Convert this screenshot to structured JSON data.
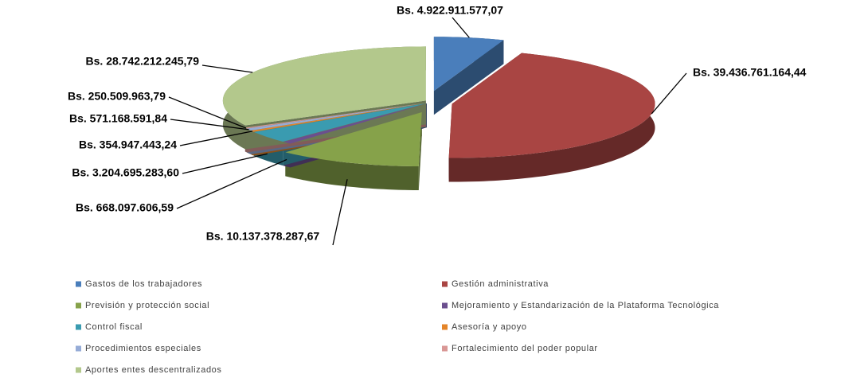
{
  "chart_data": {
    "type": "pie",
    "categories": [
      "Gastos de los trabajadores",
      "Gestión administrativa",
      "Previsión y protección social",
      "Mejoramiento y Estandarización de la Plataforma Tecnológica",
      "Control fiscal",
      "Asesoría y apoyo",
      "Procedimientos especiales",
      "Fortalecimiento del poder popular",
      "Aportes entes descentralizados"
    ],
    "values": [
      4922911577.07,
      39436761164.44,
      10137378287.67,
      668097606.59,
      3204695283.6,
      354947443.24,
      571168591.84,
      250509963.79,
      28742212245.79
    ],
    "value_labels": [
      "Bs. 4.922.911.577,07",
      "Bs. 39.436.761.164,44",
      "Bs. 10.137.378.287,67",
      "Bs. 668.097.606,59",
      "Bs. 3.204.695.283,60",
      "Bs. 354.947.443,24",
      "Bs. 571.168.591,84",
      "Bs. 250.509.963,79",
      "Bs. 28.742.212.245,79"
    ],
    "colors": [
      "#4a7ebb",
      "#a94543",
      "#86a24a",
      "#6b4f8e",
      "#3a9bb0",
      "#e4852a",
      "#96acd7",
      "#d99795",
      "#b3c88c"
    ],
    "legend": "bottom"
  }
}
